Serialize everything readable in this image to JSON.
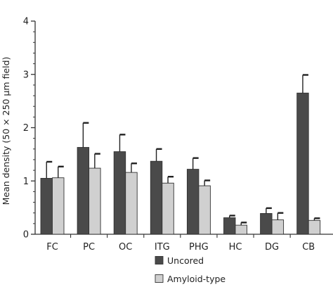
{
  "chart_data": {
    "type": "bar",
    "title": "",
    "xlabel": "",
    "ylabel": "Mean density (50 × 250 µm field)",
    "ylim": [
      0,
      4
    ],
    "yticks": [
      "0",
      "1",
      "2",
      "3",
      "4"
    ],
    "categories": [
      "FC",
      "PC",
      "OC",
      "ITG",
      "PHG",
      "HC",
      "DG",
      "CB"
    ],
    "series": [
      {
        "name": "Uncored",
        "color": "#4a4a4a",
        "values": [
          1.05,
          1.63,
          1.55,
          1.37,
          1.22,
          0.31,
          0.39,
          2.65
        ],
        "errors": [
          0.31,
          0.46,
          0.32,
          0.23,
          0.21,
          0.04,
          0.1,
          0.34
        ]
      },
      {
        "name": "Amyloid-type",
        "color": "#d0d0d0",
        "values": [
          1.06,
          1.24,
          1.16,
          0.96,
          0.91,
          0.17,
          0.27,
          0.26
        ],
        "errors": [
          0.21,
          0.27,
          0.17,
          0.12,
          0.1,
          0.05,
          0.13,
          0.04
        ]
      }
    ],
    "grid": false,
    "error_bars": "upper",
    "legend_placement": "bottom"
  }
}
